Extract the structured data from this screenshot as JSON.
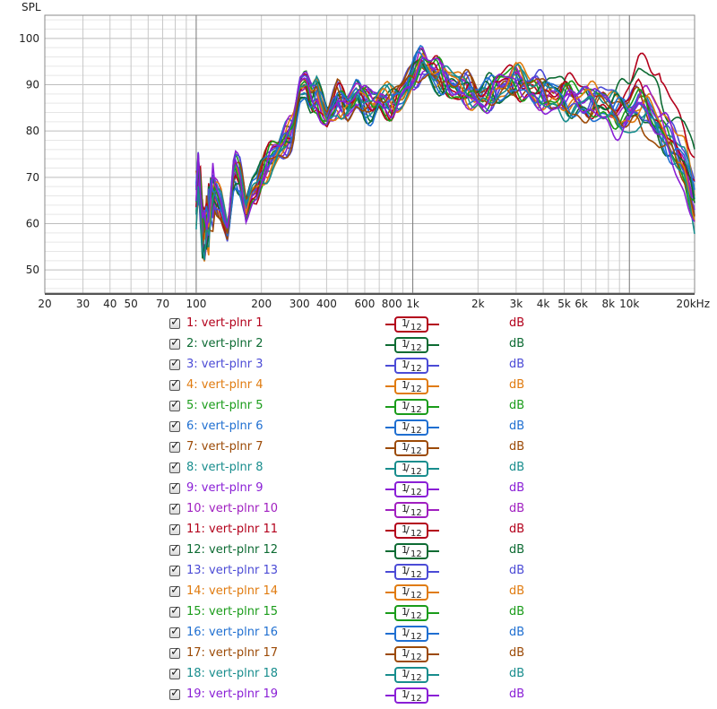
{
  "chart_data": {
    "type": "line",
    "ylabel": "SPL",
    "x_scale": "log",
    "xlim": [
      20,
      20000
    ],
    "ylim": [
      45,
      105
    ],
    "y_ticks": [
      50,
      60,
      70,
      80,
      90,
      100
    ],
    "x_ticks": [
      {
        "v": 20,
        "label": "20"
      },
      {
        "v": 30,
        "label": "30"
      },
      {
        "v": 40,
        "label": "40"
      },
      {
        "v": 50,
        "label": "50"
      },
      {
        "v": 70,
        "label": "70"
      },
      {
        "v": 100,
        "label": "100"
      },
      {
        "v": 200,
        "label": "200"
      },
      {
        "v": 300,
        "label": "300"
      },
      {
        "v": 400,
        "label": "400"
      },
      {
        "v": 600,
        "label": "600"
      },
      {
        "v": 800,
        "label": "800"
      },
      {
        "v": 1000,
        "label": "1k"
      },
      {
        "v": 2000,
        "label": "2k"
      },
      {
        "v": 3000,
        "label": "3k"
      },
      {
        "v": 4000,
        "label": "4k"
      },
      {
        "v": 5000,
        "label": "5k"
      },
      {
        "v": 6000,
        "label": "6k"
      },
      {
        "v": 8000,
        "label": "8k"
      },
      {
        "v": 10000,
        "label": "10k"
      },
      {
        "v": 20000,
        "label": "20kHz"
      }
    ],
    "grid": true,
    "base_curve": {
      "f": [
        100,
        103,
        107,
        112,
        120,
        130,
        140,
        150,
        160,
        170,
        180,
        190,
        200,
        220,
        250,
        280,
        300,
        320,
        340,
        360,
        400,
        450,
        500,
        550,
        600,
        650,
        700,
        800,
        900,
        1000,
        1100,
        1200,
        1500,
        1800,
        2000,
        2500,
        3000,
        3500,
        4000,
        5000,
        6000,
        7000,
        8000,
        9000,
        10000,
        11000,
        12000,
        14000,
        16000,
        18000,
        20000
      ],
      "db": [
        66,
        71,
        57,
        60,
        67,
        64,
        58,
        72,
        70,
        63,
        67,
        68,
        71,
        74,
        77,
        80,
        89,
        90,
        87,
        88,
        83,
        87,
        85,
        88,
        86,
        85,
        87,
        86,
        88,
        92,
        95,
        93,
        90,
        89,
        87,
        89,
        91,
        89,
        88,
        87,
        86,
        86,
        85,
        84,
        84,
        86,
        85,
        80,
        76,
        72,
        64
      ]
    },
    "series": [
      {
        "name": "1: vert-plnr 1",
        "smoothing": "1/12",
        "unit": "dB",
        "color": "#b3001b"
      },
      {
        "name": "2: vert-plnr 2",
        "smoothing": "1/12",
        "unit": "dB",
        "color": "#0d6b33"
      },
      {
        "name": "3: vert-plnr 3",
        "smoothing": "1/12",
        "unit": "dB",
        "color": "#4b4bd6"
      },
      {
        "name": "4: vert-plnr 4",
        "smoothing": "1/12",
        "unit": "dB",
        "color": "#e07b0f"
      },
      {
        "name": "5: vert-plnr 5",
        "smoothing": "1/12",
        "unit": "dB",
        "color": "#1a9c1a"
      },
      {
        "name": "6: vert-plnr 6",
        "smoothing": "1/12",
        "unit": "dB",
        "color": "#1f6fd1"
      },
      {
        "name": "7: vert-plnr 7",
        "smoothing": "1/12",
        "unit": "dB",
        "color": "#9c4a06"
      },
      {
        "name": "8: vert-plnr 8",
        "smoothing": "1/12",
        "unit": "dB",
        "color": "#188d8d"
      },
      {
        "name": "9: vert-plnr 9",
        "smoothing": "1/12",
        "unit": "dB",
        "color": "#8a1fd6"
      },
      {
        "name": "10: vert-plnr 10",
        "smoothing": "1/12",
        "unit": "dB",
        "color": "#a01fc0"
      },
      {
        "name": "11: vert-plnr 11",
        "smoothing": "1/12",
        "unit": "dB",
        "color": "#b3001b"
      },
      {
        "name": "12: vert-plnr 12",
        "smoothing": "1/12",
        "unit": "dB",
        "color": "#0d6b33"
      },
      {
        "name": "13: vert-plnr 13",
        "smoothing": "1/12",
        "unit": "dB",
        "color": "#4b4bd6"
      },
      {
        "name": "14: vert-plnr 14",
        "smoothing": "1/12",
        "unit": "dB",
        "color": "#e07b0f"
      },
      {
        "name": "15: vert-plnr 15",
        "smoothing": "1/12",
        "unit": "dB",
        "color": "#1a9c1a"
      },
      {
        "name": "16: vert-plnr 16",
        "smoothing": "1/12",
        "unit": "dB",
        "color": "#1f6fd1"
      },
      {
        "name": "17: vert-plnr 17",
        "smoothing": "1/12",
        "unit": "dB",
        "color": "#9c4a06"
      },
      {
        "name": "18: vert-plnr 18",
        "smoothing": "1/12",
        "unit": "dB",
        "color": "#188d8d"
      },
      {
        "name": "19: vert-plnr 19",
        "smoothing": "1/12",
        "unit": "dB",
        "color": "#8a1fd6"
      }
    ]
  }
}
